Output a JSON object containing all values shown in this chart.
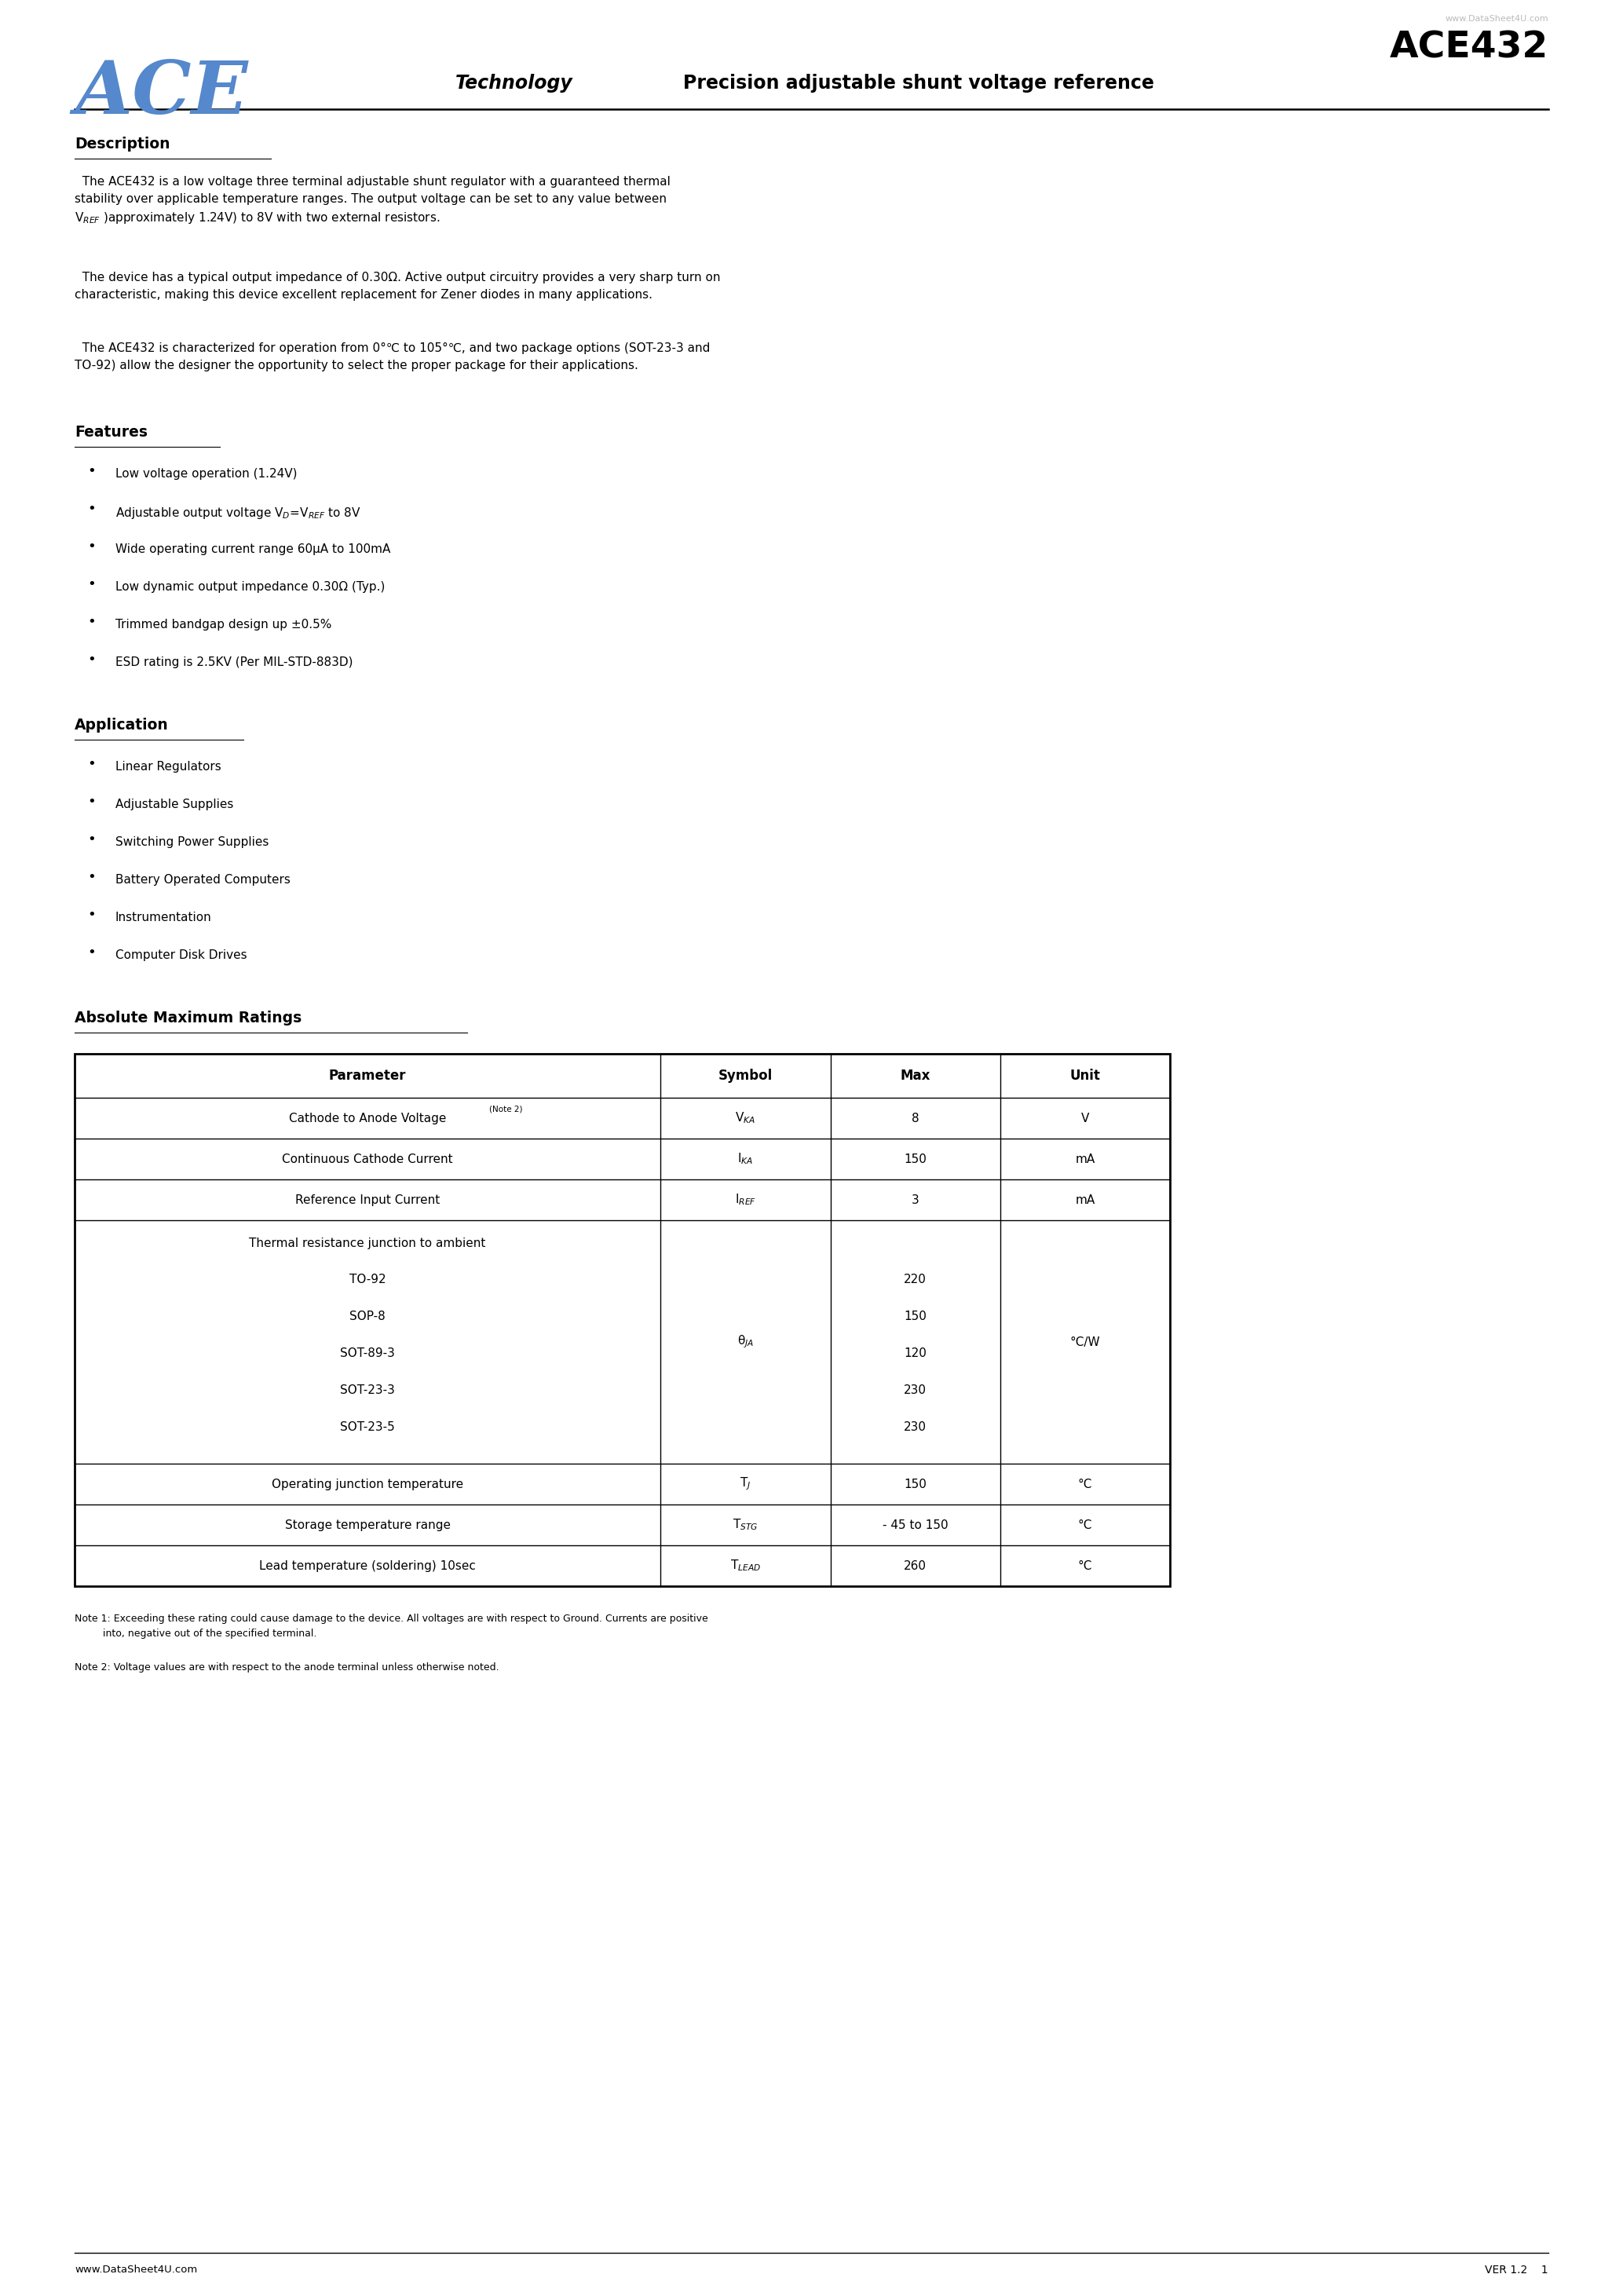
{
  "page_width": 20.67,
  "page_height": 29.24,
  "background_color": "#ffffff",
  "ace_logo_color": "#5588cc",
  "ace_logo_text": "ACE",
  "company_subtitle": "Technology",
  "product_title": "ACE432",
  "product_subtitle": "Precision adjustable shunt voltage reference",
  "watermark": "www.DataSheet4U.com",
  "description_title": "Description",
  "features_title": "Features",
  "features_display": [
    "Low voltage operation (1.24V)",
    "Adjustable output voltage V$_D$=V$_{REF}$ to 8V",
    "Wide operating current range 60μA to 100mA",
    "Low dynamic output impedance 0.30Ω (Typ.)",
    "Trimmed bandgap design up ±0.5%",
    "ESD rating is 2.5KV (Per MIL-STD-883D)"
  ],
  "application_title": "Application",
  "applications": [
    "Linear Regulators",
    "Adjustable Supplies",
    "Switching Power Supplies",
    "Battery Operated Computers",
    "Instrumentation",
    "Computer Disk Drives"
  ],
  "ratings_title": "Absolute Maximum Ratings",
  "footer_left": "www.DataSheet4U.com",
  "footer_right": "VER 1.2    1"
}
